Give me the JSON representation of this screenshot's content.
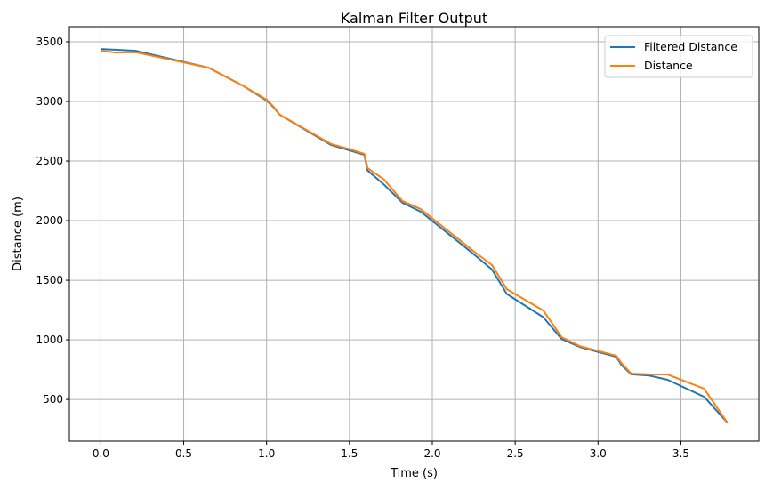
{
  "chart_data": {
    "type": "line",
    "title": "Kalman Filter Output",
    "xlabel": "Time (s)",
    "ylabel": "Distance (m)",
    "xlim": [
      -0.19,
      3.97
    ],
    "ylim": [
      150,
      3627
    ],
    "xticks": [
      0.0,
      0.5,
      1.0,
      1.5,
      2.0,
      2.5,
      3.0,
      3.5
    ],
    "xtick_labels": [
      "0.0",
      "0.5",
      "1.0",
      "1.5",
      "2.0",
      "2.5",
      "3.0",
      "3.5"
    ],
    "yticks": [
      500,
      1000,
      1500,
      2000,
      2500,
      3000,
      3500
    ],
    "ytick_labels": [
      "500",
      "1000",
      "1500",
      "2000",
      "2500",
      "3000",
      "3500"
    ],
    "grid": true,
    "legend": "top-right",
    "series": [
      {
        "name": "Filtered Distance",
        "color": "#1f77b4",
        "x": [
          0,
          0.21,
          0.65,
          0.86,
          1.0,
          1.04,
          1.08,
          1.39,
          1.5,
          1.59,
          1.61,
          1.71,
          1.82,
          1.93,
          2.24,
          2.36,
          2.45,
          2.67,
          2.78,
          2.89,
          3.11,
          3.14,
          3.2,
          3.31,
          3.42,
          3.64,
          3.78
        ],
        "y": [
          3440,
          3425,
          3283,
          3130,
          3008,
          2955,
          2888,
          2634,
          2590,
          2552,
          2420,
          2300,
          2150,
          2075,
          1730,
          1590,
          1385,
          1190,
          1007,
          940,
          858,
          791,
          710,
          700,
          665,
          522,
          306
        ]
      },
      {
        "name": "Distance",
        "color": "#ff7f0e",
        "x": [
          0,
          0.09,
          0.21,
          0.65,
          0.86,
          1.0,
          1.04,
          1.08,
          1.39,
          1.5,
          1.59,
          1.61,
          1.71,
          1.82,
          1.93,
          2.24,
          2.36,
          2.45,
          2.67,
          2.78,
          2.89,
          3.11,
          3.14,
          3.2,
          3.31,
          3.42,
          3.64,
          3.78
        ],
        "y": [
          3425,
          3410,
          3412,
          3283,
          3130,
          3015,
          2960,
          2888,
          2642,
          2600,
          2560,
          2440,
          2343,
          2164,
          2097,
          1754,
          1627,
          1425,
          1246,
          1022,
          947,
          866,
          806,
          716,
          710,
          709,
          590,
          306
        ]
      }
    ]
  }
}
